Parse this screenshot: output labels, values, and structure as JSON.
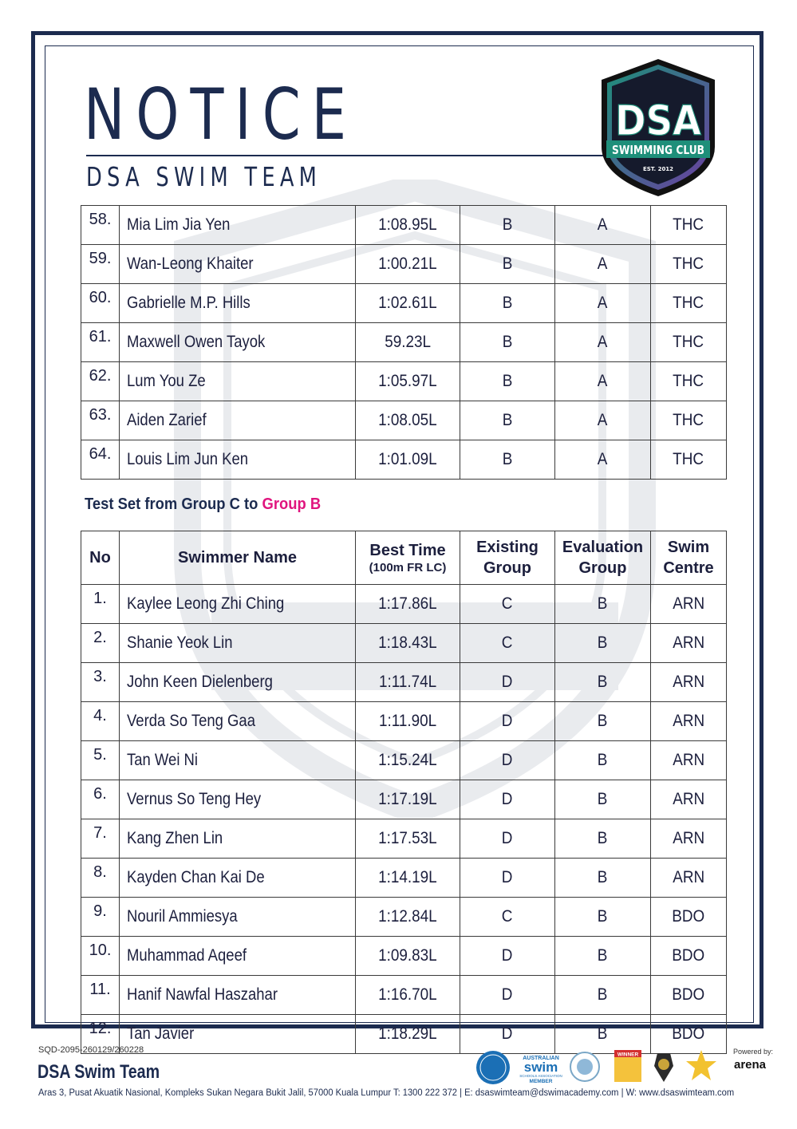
{
  "header": {
    "title": "NOTICE",
    "subtitle": "DSA SWIM TEAM",
    "logo": {
      "top_text": "DSA",
      "band_text": "SWIMMING CLUB",
      "est_text": "EST. 2012"
    }
  },
  "table_top": {
    "rows": [
      {
        "no": "58.",
        "name": "Mia Lim Jia Yen",
        "time": "1:08.95L",
        "existing": "B",
        "evaluation": "A",
        "centre": "THC"
      },
      {
        "no": "59.",
        "name": "Wan-Leong Khaiter",
        "time": "1:00.21L",
        "existing": "B",
        "evaluation": "A",
        "centre": "THC"
      },
      {
        "no": "60.",
        "name": "Gabrielle M.P. Hills",
        "time": "1:02.61L",
        "existing": "B",
        "evaluation": "A",
        "centre": "THC"
      },
      {
        "no": "61.",
        "name": "Maxwell Owen Tayok",
        "time": "59.23L",
        "existing": "B",
        "evaluation": "A",
        "centre": "THC"
      },
      {
        "no": "62.",
        "name": "Lum You Ze",
        "time": "1:05.97L",
        "existing": "B",
        "evaluation": "A",
        "centre": "THC"
      },
      {
        "no": "63.",
        "name": "Aiden Zarief",
        "time": "1:08.05L",
        "existing": "B",
        "evaluation": "A",
        "centre": "THC"
      },
      {
        "no": "64.",
        "name": "Louis Lim Jun Ken",
        "time": "1:01.09L",
        "existing": "B",
        "evaluation": "A",
        "centre": "THC"
      }
    ]
  },
  "section": {
    "heading_prefix": "Test Set from Group C to ",
    "heading_accent": "Group B",
    "accent_color": "#e0147e"
  },
  "table_bottom": {
    "headers": {
      "no": "No",
      "name": "Swimmer Name",
      "time": "Best Time",
      "time_sub": "(100m FR LC)",
      "existing_1": "Existing",
      "existing_2": "Group",
      "evaluation_1": "Evaluation",
      "evaluation_2": "Group",
      "centre_1": "Swim",
      "centre_2": "Centre"
    },
    "rows": [
      {
        "no": "1.",
        "name": "Kaylee Leong Zhi Ching",
        "time": "1:17.86L",
        "existing": "C",
        "evaluation": "B",
        "centre": "ARN"
      },
      {
        "no": "2.",
        "name": "Shanie Yeok Lin",
        "time": "1:18.43L",
        "existing": "C",
        "evaluation": "B",
        "centre": "ARN"
      },
      {
        "no": "3.",
        "name": "John Keen Dielenberg",
        "time": "1:11.74L",
        "existing": "D",
        "evaluation": "B",
        "centre": "ARN"
      },
      {
        "no": "4.",
        "name": "Verda So Teng Gaa",
        "time": "1:11.90L",
        "existing": "D",
        "evaluation": "B",
        "centre": "ARN"
      },
      {
        "no": "5.",
        "name": "Tan Wei Ni",
        "time": "1:15.24L",
        "existing": "D",
        "evaluation": "B",
        "centre": "ARN"
      },
      {
        "no": "6.",
        "name": "Vernus So Teng Hey",
        "time": "1:17.19L",
        "existing": "D",
        "evaluation": "B",
        "centre": "ARN"
      },
      {
        "no": "7.",
        "name": "Kang Zhen Lin",
        "time": "1:17.53L",
        "existing": "D",
        "evaluation": "B",
        "centre": "ARN"
      },
      {
        "no": "8.",
        "name": "Kayden Chan Kai De",
        "time": "1:14.19L",
        "existing": "D",
        "evaluation": "B",
        "centre": "ARN"
      },
      {
        "no": "9.",
        "name": "Nouril Ammiesya",
        "time": "1:12.84L",
        "existing": "C",
        "evaluation": "B",
        "centre": "BDO"
      },
      {
        "no": "10.",
        "name": "Muhammad Aqeef",
        "time": "1:09.83L",
        "existing": "D",
        "evaluation": "B",
        "centre": "BDO"
      },
      {
        "no": "11.",
        "name": "Hanif Nawfal Haszahar",
        "time": "1:16.70L",
        "existing": "D",
        "evaluation": "B",
        "centre": "BDO"
      },
      {
        "no": "12.",
        "name": "Tan Javier",
        "time": "1:18.29L",
        "existing": "D",
        "evaluation": "B",
        "centre": "BDO"
      }
    ]
  },
  "footer": {
    "code": "SQD-2095-260129/260228",
    "team": "DSA Swim Team",
    "address": "Aras 3, Pusat Akuatik Nasional, Kompleks Sukan Negara Bukit Jalil, 57000 Kuala Lumpur   T: 1300 222 372  |  E: dsaswimteam@dswimacademy.com  |  W: www.dsaswimteam.com",
    "powered_by": "Powered by:",
    "badges": {
      "australian_swim": [
        "AUSTRALIAN",
        "swim",
        "SCHOOLS ASSOCIATION",
        "MEMBER"
      ],
      "winner": "WINNER",
      "arena": "arena"
    }
  },
  "colors": {
    "navy": "#1c2b4f",
    "text": "#1c1f3d",
    "logo_green": "#1e8f7a",
    "logo_purple": "#6a3fa0"
  }
}
